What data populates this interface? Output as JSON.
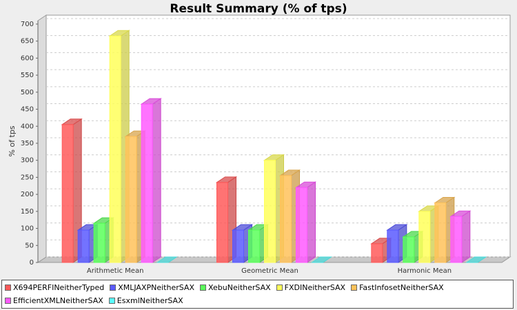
{
  "chart_data": {
    "type": "bar3d",
    "title": "Result Summary (% of tps)",
    "y_label": "% of tps",
    "categories": [
      "Arithmetic Mean",
      "Geometric Mean",
      "Harmonic Mean"
    ],
    "series": [
      {
        "name": "X694PERFINeitherTyped",
        "color": "#ff5a5a",
        "values": [
          405,
          235,
          55
        ]
      },
      {
        "name": "XMLJAXPNeitherSAX",
        "color": "#5a5aff",
        "values": [
          95,
          95,
          95
        ]
      },
      {
        "name": "XebuNeitherSAX",
        "color": "#5aff5a",
        "values": [
          115,
          95,
          75
        ]
      },
      {
        "name": "FXDINeitherSAX",
        "color": "#ffff5a",
        "values": [
          665,
          300,
          150
        ]
      },
      {
        "name": "FastInfosetNeitherSAX",
        "color": "#ffc25a",
        "values": [
          370,
          255,
          175
        ]
      },
      {
        "name": "EfficientXMLNeitherSAX",
        "color": "#ff5aff",
        "values": [
          465,
          220,
          135
        ]
      },
      {
        "name": "EsxmlNeitherSAX",
        "color": "#5affff",
        "values": [
          0,
          0,
          0
        ]
      }
    ],
    "ylim": [
      0,
      710
    ],
    "yticks": [
      0,
      50,
      100,
      150,
      200,
      250,
      300,
      350,
      400,
      450,
      500,
      550,
      600,
      650,
      700
    ],
    "grid": true
  }
}
